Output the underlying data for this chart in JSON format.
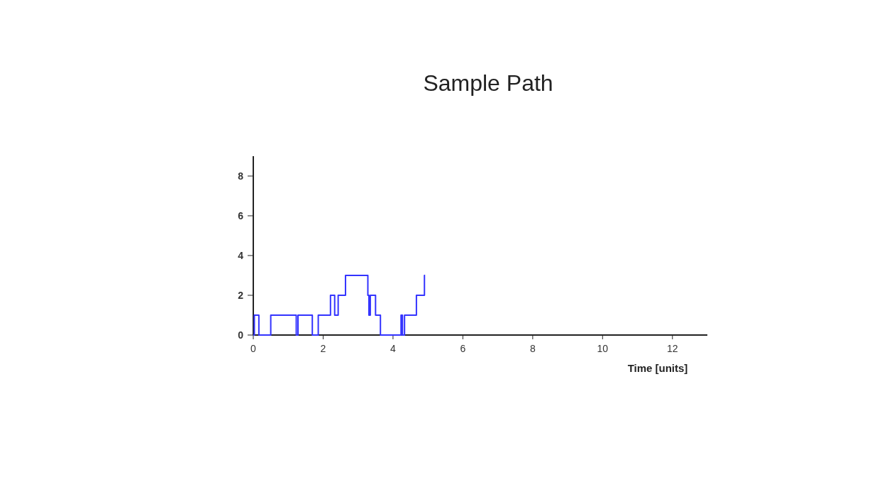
{
  "chart_data": {
    "type": "step",
    "title": "Sample Path",
    "xlabel": "Time [units]",
    "x": [
      0,
      0.03,
      0.16,
      0.5,
      1.23,
      1.28,
      1.69,
      1.86,
      2.21,
      2.33,
      2.43,
      2.64,
      3.28,
      3.31,
      3.35,
      3.5,
      3.64,
      4.23,
      4.27,
      4.33,
      4.67,
      4.9,
      4.92
    ],
    "values": [
      0,
      1,
      0,
      1,
      0,
      1,
      0,
      1,
      2,
      1,
      2,
      3,
      2,
      1,
      2,
      1,
      0,
      1,
      0,
      1,
      2,
      3,
      3
    ],
    "color": "#3333ff",
    "xlim": [
      0,
      13
    ],
    "xticks": [
      0,
      2,
      4,
      6,
      8,
      10,
      12
    ],
    "ylim": [
      0,
      9
    ],
    "yticks": [
      0,
      2,
      4,
      6,
      8
    ],
    "grid": false
  }
}
